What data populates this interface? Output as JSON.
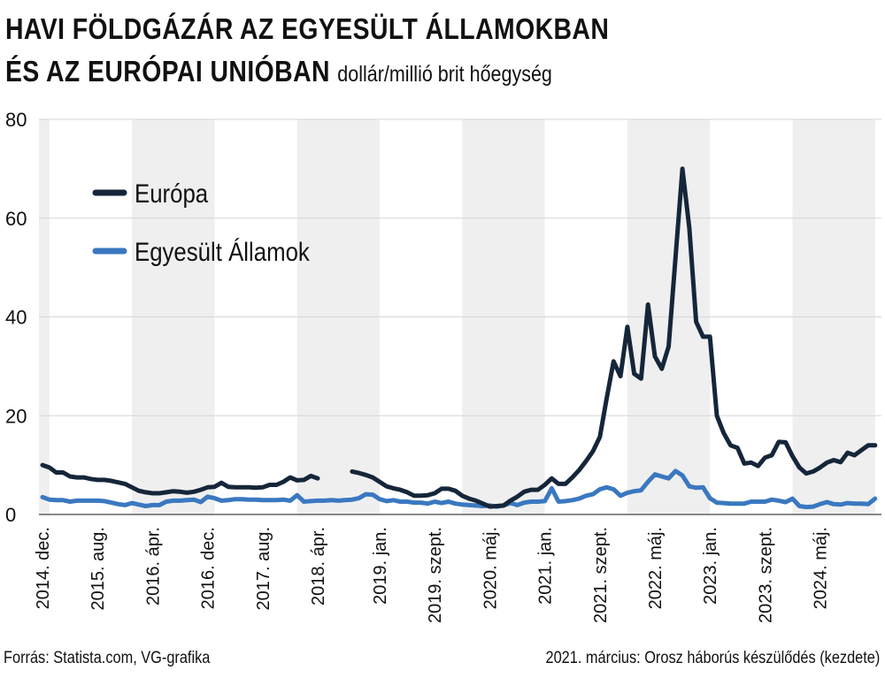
{
  "header": {
    "title_line1": "HAVI FÖLDGÁZÁR AZ EGYESÜLT ÁLLAMOKBAN",
    "title_line2": "ÉS AZ EURÓPAI UNIÓBAN",
    "unit": "dollár/millió brit hőegység"
  },
  "footer": {
    "source": "Forrás: Statista.com, VG-grafika",
    "note": "2021. március: Orosz háborús készülődés (kezdete)"
  },
  "colors": {
    "europe": "#16263a",
    "usa": "#3a78c0",
    "band": "#efefef",
    "grid": "#d6d6d6"
  },
  "chart_data": {
    "type": "line",
    "title": "HAVI FÖLDGÁZÁR AZ EGYESÜLT ÁLLAMOKBAN ÉS AZ EURÓPAI UNIÓBAN",
    "ylabel": "dollár/millió brit hőegység",
    "ylim": [
      0,
      80
    ],
    "yticks": [
      0,
      20,
      40,
      60,
      80
    ],
    "grid": true,
    "legend_position": "top-left",
    "x_start": "2014-12",
    "x_end": "2024-12",
    "x_tick_labels": [
      {
        "date": "2014-12",
        "label": "2014. dec."
      },
      {
        "date": "2015-08",
        "label": "2015. aug."
      },
      {
        "date": "2016-04",
        "label": "2016. ápr."
      },
      {
        "date": "2016-12",
        "label": "2016. dec."
      },
      {
        "date": "2017-08",
        "label": "2017. aug."
      },
      {
        "date": "2018-04",
        "label": "2018. ápr."
      },
      {
        "date": "2019-01",
        "label": "2019. jan."
      },
      {
        "date": "2019-09",
        "label": "2019. szept."
      },
      {
        "date": "2020-05",
        "label": "2020. máj."
      },
      {
        "date": "2021-01",
        "label": "2021. jan."
      },
      {
        "date": "2021-09",
        "label": "2021. szept."
      },
      {
        "date": "2022-05",
        "label": "2022. máj."
      },
      {
        "date": "2023-01",
        "label": "2023. jan."
      },
      {
        "date": "2023-09",
        "label": "2023. szept."
      },
      {
        "date": "2024-05",
        "label": "2024. máj."
      }
    ],
    "series": [
      {
        "name": "Európa",
        "color": "#16263a",
        "points": [
          [
            "2014-12",
            10.0
          ],
          [
            "2015-01",
            9.5
          ],
          [
            "2015-02",
            8.5
          ],
          [
            "2015-03",
            8.5
          ],
          [
            "2015-04",
            7.7
          ],
          [
            "2015-05",
            7.5
          ],
          [
            "2015-06",
            7.5
          ],
          [
            "2015-07",
            7.2
          ],
          [
            "2015-08",
            7.0
          ],
          [
            "2015-09",
            7.0
          ],
          [
            "2015-10",
            6.8
          ],
          [
            "2015-11",
            6.5
          ],
          [
            "2015-12",
            6.2
          ],
          [
            "2016-01",
            5.5
          ],
          [
            "2016-02",
            4.8
          ],
          [
            "2016-03",
            4.5
          ],
          [
            "2016-04",
            4.3
          ],
          [
            "2016-05",
            4.3
          ],
          [
            "2016-06",
            4.5
          ],
          [
            "2016-07",
            4.7
          ],
          [
            "2016-08",
            4.6
          ],
          [
            "2016-09",
            4.4
          ],
          [
            "2016-10",
            4.6
          ],
          [
            "2016-11",
            5.0
          ],
          [
            "2016-12",
            5.5
          ],
          [
            "2017-01",
            5.6
          ],
          [
            "2017-02",
            6.4
          ],
          [
            "2017-03",
            5.6
          ],
          [
            "2017-04",
            5.5
          ],
          [
            "2017-05",
            5.5
          ],
          [
            "2017-06",
            5.5
          ],
          [
            "2017-07",
            5.4
          ],
          [
            "2017-08",
            5.5
          ],
          [
            "2017-09",
            6.0
          ],
          [
            "2017-10",
            6.0
          ],
          [
            "2017-11",
            6.6
          ],
          [
            "2017-12",
            7.5
          ],
          [
            "2018-01",
            6.9
          ],
          [
            "2018-02",
            7.0
          ],
          [
            "2018-03",
            7.8
          ],
          [
            "2018-04",
            7.3
          ],
          [
            "2018-05",
            null
          ],
          [
            "2018-06",
            null
          ],
          [
            "2018-07",
            null
          ],
          [
            "2018-08",
            null
          ],
          [
            "2018-09",
            8.7
          ],
          [
            "2018-10",
            8.4
          ],
          [
            "2018-11",
            8.0
          ],
          [
            "2018-12",
            7.5
          ],
          [
            "2019-01",
            6.6
          ],
          [
            "2019-02",
            5.7
          ],
          [
            "2019-03",
            5.3
          ],
          [
            "2019-04",
            5.0
          ],
          [
            "2019-05",
            4.5
          ],
          [
            "2019-06",
            3.8
          ],
          [
            "2019-07",
            3.8
          ],
          [
            "2019-08",
            3.9
          ],
          [
            "2019-09",
            4.3
          ],
          [
            "2019-10",
            5.2
          ],
          [
            "2019-11",
            5.2
          ],
          [
            "2019-12",
            4.8
          ],
          [
            "2020-01",
            3.8
          ],
          [
            "2020-02",
            3.2
          ],
          [
            "2020-03",
            2.8
          ],
          [
            "2020-04",
            2.2
          ],
          [
            "2020-05",
            1.6
          ],
          [
            "2020-06",
            1.7
          ],
          [
            "2020-07",
            1.8
          ],
          [
            "2020-08",
            2.8
          ],
          [
            "2020-09",
            3.6
          ],
          [
            "2020-10",
            4.6
          ],
          [
            "2020-11",
            5.0
          ],
          [
            "2020-12",
            5.0
          ],
          [
            "2021-01",
            6.0
          ],
          [
            "2021-02",
            7.3
          ],
          [
            "2021-03",
            6.2
          ],
          [
            "2021-04",
            6.2
          ],
          [
            "2021-05",
            7.5
          ],
          [
            "2021-06",
            9.0
          ],
          [
            "2021-07",
            10.8
          ],
          [
            "2021-08",
            12.8
          ],
          [
            "2021-09",
            15.7
          ],
          [
            "2021-10",
            23.5
          ],
          [
            "2021-11",
            31.0
          ],
          [
            "2021-12",
            28.0
          ],
          [
            "2022-01",
            38.0
          ],
          [
            "2022-02",
            28.5
          ],
          [
            "2022-03",
            27.5
          ],
          [
            "2022-04",
            42.5
          ],
          [
            "2022-05",
            32.0
          ],
          [
            "2022-06",
            29.5
          ],
          [
            "2022-07",
            34.0
          ],
          [
            "2022-08",
            52.0
          ],
          [
            "2022-09",
            70.0
          ],
          [
            "2022-10",
            58.0
          ],
          [
            "2022-11",
            39.0
          ],
          [
            "2022-12",
            36.0
          ],
          [
            "2023-01",
            36.0
          ],
          [
            "2023-02",
            20.0
          ],
          [
            "2023-03",
            16.5
          ],
          [
            "2023-04",
            14.0
          ],
          [
            "2023-05",
            13.5
          ],
          [
            "2023-06",
            10.3
          ],
          [
            "2023-07",
            10.5
          ],
          [
            "2023-08",
            9.8
          ],
          [
            "2023-09",
            11.5
          ],
          [
            "2023-10",
            12.0
          ],
          [
            "2023-11",
            14.7
          ],
          [
            "2023-12",
            14.6
          ],
          [
            "2024-01",
            11.8
          ],
          [
            "2024-02",
            9.5
          ],
          [
            "2024-03",
            8.3
          ],
          [
            "2024-04",
            8.7
          ],
          [
            "2024-05",
            9.5
          ],
          [
            "2024-06",
            10.5
          ],
          [
            "2024-07",
            11.0
          ],
          [
            "2024-08",
            10.6
          ],
          [
            "2024-09",
            12.5
          ],
          [
            "2024-10",
            12.0
          ],
          [
            "2024-11",
            13.0
          ],
          [
            "2024-12",
            14.0
          ],
          [
            "2025-01",
            14.0
          ]
        ]
      },
      {
        "name": "Egyesült Államok",
        "color": "#3a78c0",
        "points": [
          [
            "2014-12",
            3.5
          ],
          [
            "2015-01",
            3.0
          ],
          [
            "2015-02",
            2.9
          ],
          [
            "2015-03",
            2.9
          ],
          [
            "2015-04",
            2.6
          ],
          [
            "2015-05",
            2.8
          ],
          [
            "2015-06",
            2.8
          ],
          [
            "2015-07",
            2.8
          ],
          [
            "2015-08",
            2.8
          ],
          [
            "2015-09",
            2.7
          ],
          [
            "2015-10",
            2.4
          ],
          [
            "2015-11",
            2.1
          ],
          [
            "2015-12",
            1.9
          ],
          [
            "2016-01",
            2.3
          ],
          [
            "2016-02",
            2.0
          ],
          [
            "2016-03",
            1.7
          ],
          [
            "2016-04",
            1.9
          ],
          [
            "2016-05",
            1.9
          ],
          [
            "2016-06",
            2.6
          ],
          [
            "2016-07",
            2.8
          ],
          [
            "2016-08",
            2.8
          ],
          [
            "2016-09",
            2.9
          ],
          [
            "2016-10",
            3.0
          ],
          [
            "2016-11",
            2.5
          ],
          [
            "2016-12",
            3.6
          ],
          [
            "2017-01",
            3.3
          ],
          [
            "2017-02",
            2.8
          ],
          [
            "2017-03",
            2.9
          ],
          [
            "2017-04",
            3.1
          ],
          [
            "2017-05",
            3.1
          ],
          [
            "2017-06",
            3.0
          ],
          [
            "2017-07",
            3.0
          ],
          [
            "2017-08",
            2.9
          ],
          [
            "2017-09",
            2.9
          ],
          [
            "2017-10",
            2.9
          ],
          [
            "2017-11",
            3.0
          ],
          [
            "2017-12",
            2.8
          ],
          [
            "2018-01",
            3.9
          ],
          [
            "2018-02",
            2.6
          ],
          [
            "2018-03",
            2.7
          ],
          [
            "2018-04",
            2.8
          ],
          [
            "2018-05",
            2.8
          ],
          [
            "2018-06",
            2.9
          ],
          [
            "2018-07",
            2.8
          ],
          [
            "2018-08",
            2.9
          ],
          [
            "2018-09",
            3.0
          ],
          [
            "2018-10",
            3.3
          ],
          [
            "2018-11",
            4.1
          ],
          [
            "2018-12",
            4.0
          ],
          [
            "2019-01",
            3.1
          ],
          [
            "2019-02",
            2.7
          ],
          [
            "2019-03",
            2.9
          ],
          [
            "2019-04",
            2.6
          ],
          [
            "2019-05",
            2.6
          ],
          [
            "2019-06",
            2.4
          ],
          [
            "2019-07",
            2.4
          ],
          [
            "2019-08",
            2.2
          ],
          [
            "2019-09",
            2.6
          ],
          [
            "2019-10",
            2.3
          ],
          [
            "2019-11",
            2.6
          ],
          [
            "2019-12",
            2.2
          ],
          [
            "2020-01",
            2.0
          ],
          [
            "2020-02",
            1.9
          ],
          [
            "2020-03",
            1.8
          ],
          [
            "2020-04",
            1.7
          ],
          [
            "2020-05",
            1.8
          ],
          [
            "2020-06",
            1.6
          ],
          [
            "2020-07",
            1.8
          ],
          [
            "2020-08",
            2.3
          ],
          [
            "2020-09",
            1.9
          ],
          [
            "2020-10",
            2.4
          ],
          [
            "2020-11",
            2.6
          ],
          [
            "2020-12",
            2.6
          ],
          [
            "2021-01",
            2.7
          ],
          [
            "2021-02",
            5.3
          ],
          [
            "2021-03",
            2.6
          ],
          [
            "2021-04",
            2.7
          ],
          [
            "2021-05",
            2.9
          ],
          [
            "2021-06",
            3.2
          ],
          [
            "2021-07",
            3.8
          ],
          [
            "2021-08",
            4.1
          ],
          [
            "2021-09",
            5.1
          ],
          [
            "2021-10",
            5.5
          ],
          [
            "2021-11",
            5.1
          ],
          [
            "2021-12",
            3.8
          ],
          [
            "2022-01",
            4.4
          ],
          [
            "2022-02",
            4.7
          ],
          [
            "2022-03",
            4.9
          ],
          [
            "2022-04",
            6.6
          ],
          [
            "2022-05",
            8.1
          ],
          [
            "2022-06",
            7.7
          ],
          [
            "2022-07",
            7.3
          ],
          [
            "2022-08",
            8.8
          ],
          [
            "2022-09",
            7.9
          ],
          [
            "2022-10",
            5.7
          ],
          [
            "2022-11",
            5.4
          ],
          [
            "2022-12",
            5.5
          ],
          [
            "2023-01",
            3.3
          ],
          [
            "2023-02",
            2.4
          ],
          [
            "2023-03",
            2.3
          ],
          [
            "2023-04",
            2.2
          ],
          [
            "2023-05",
            2.2
          ],
          [
            "2023-06",
            2.2
          ],
          [
            "2023-07",
            2.6
          ],
          [
            "2023-08",
            2.6
          ],
          [
            "2023-09",
            2.6
          ],
          [
            "2023-10",
            3.0
          ],
          [
            "2023-11",
            2.8
          ],
          [
            "2023-12",
            2.5
          ],
          [
            "2024-01",
            3.2
          ],
          [
            "2024-02",
            1.7
          ],
          [
            "2024-03",
            1.5
          ],
          [
            "2024-04",
            1.6
          ],
          [
            "2024-05",
            2.1
          ],
          [
            "2024-06",
            2.5
          ],
          [
            "2024-07",
            2.1
          ],
          [
            "2024-08",
            2.0
          ],
          [
            "2024-09",
            2.3
          ],
          [
            "2024-10",
            2.2
          ],
          [
            "2024-11",
            2.2
          ],
          [
            "2024-12",
            2.1
          ],
          [
            "2025-01",
            3.2
          ]
        ]
      }
    ]
  }
}
